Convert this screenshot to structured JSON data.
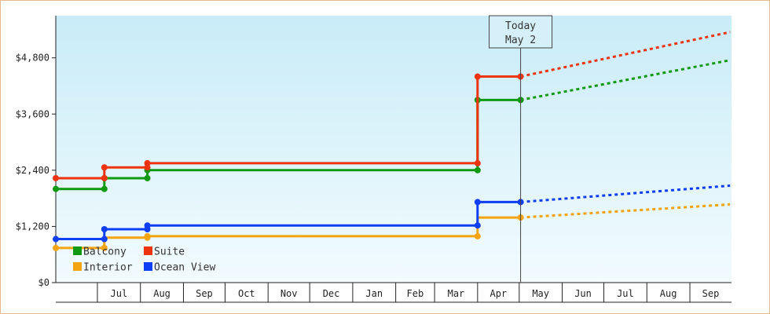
{
  "chart_data": {
    "type": "line",
    "y_ticks": [
      "$0",
      "$1,200",
      "$2,400",
      "$3,600",
      "$4,800"
    ],
    "ylim": [
      0,
      5700
    ],
    "x_months": [
      "Jul",
      "Aug",
      "Sep",
      "Oct",
      "Nov",
      "Dec",
      "Jan",
      "Feb",
      "Mar",
      "Apr",
      "May",
      "Jun",
      "Jul",
      "Aug",
      "Sep"
    ],
    "x_start_date": "2013-06-01",
    "x_end_date": "2014-09-30",
    "today": {
      "label_line1": "Today",
      "label_line2": "May 2",
      "date": "2014-05-02"
    },
    "series": [
      {
        "name": "Balcony",
        "color": "#119911",
        "points": [
          [
            "2013-06-01",
            2000
          ],
          [
            "2013-07-06",
            2000
          ],
          [
            "2013-07-06",
            2230
          ],
          [
            "2013-08-06",
            2230
          ],
          [
            "2013-08-06",
            2400
          ],
          [
            "2014-04-01",
            2400
          ],
          [
            "2014-04-01",
            3900
          ],
          [
            "2014-05-02",
            3900
          ]
        ],
        "markers": [
          [
            "2013-06-01",
            2000
          ],
          [
            "2013-07-06",
            2000
          ],
          [
            "2013-07-06",
            2230
          ],
          [
            "2013-08-06",
            2230
          ],
          [
            "2013-08-06",
            2400
          ],
          [
            "2014-04-01",
            2400
          ],
          [
            "2014-04-01",
            3900
          ],
          [
            "2014-05-02",
            3900
          ]
        ],
        "projection": [
          [
            "2014-05-02",
            3900
          ],
          [
            "2014-09-30",
            4750
          ]
        ]
      },
      {
        "name": "Suite",
        "color": "#ee3311",
        "points": [
          [
            "2013-06-01",
            2230
          ],
          [
            "2013-07-06",
            2230
          ],
          [
            "2013-07-06",
            2460
          ],
          [
            "2013-08-06",
            2460
          ],
          [
            "2013-08-06",
            2550
          ],
          [
            "2014-04-01",
            2550
          ],
          [
            "2014-04-01",
            4400
          ],
          [
            "2014-05-02",
            4400
          ]
        ],
        "markers": [
          [
            "2013-06-01",
            2230
          ],
          [
            "2013-07-06",
            2230
          ],
          [
            "2013-07-06",
            2460
          ],
          [
            "2013-08-06",
            2460
          ],
          [
            "2013-08-06",
            2550
          ],
          [
            "2014-04-01",
            2550
          ],
          [
            "2014-04-01",
            4400
          ],
          [
            "2014-05-02",
            4400
          ]
        ],
        "projection": [
          [
            "2014-05-02",
            4400
          ],
          [
            "2014-09-30",
            5350
          ]
        ]
      },
      {
        "name": "Interior",
        "color": "#f4a411",
        "points": [
          [
            "2013-06-01",
            740
          ],
          [
            "2013-07-06",
            740
          ],
          [
            "2013-07-06",
            960
          ],
          [
            "2013-08-06",
            960
          ],
          [
            "2013-08-06",
            990
          ],
          [
            "2014-04-01",
            990
          ],
          [
            "2014-04-01",
            1390
          ],
          [
            "2014-05-02",
            1390
          ]
        ],
        "markers": [
          [
            "2013-06-01",
            740
          ],
          [
            "2013-07-06",
            740
          ],
          [
            "2013-08-06",
            960
          ],
          [
            "2013-08-06",
            990
          ],
          [
            "2014-04-01",
            990
          ],
          [
            "2014-05-02",
            1390
          ]
        ],
        "projection": [
          [
            "2014-05-02",
            1390
          ],
          [
            "2014-09-30",
            1670
          ]
        ]
      },
      {
        "name": "Ocean View",
        "color": "#0f3ff5",
        "points": [
          [
            "2013-06-01",
            930
          ],
          [
            "2013-07-06",
            930
          ],
          [
            "2013-07-06",
            1140
          ],
          [
            "2013-08-06",
            1140
          ],
          [
            "2013-08-06",
            1220
          ],
          [
            "2014-04-01",
            1220
          ],
          [
            "2014-04-01",
            1720
          ],
          [
            "2014-05-02",
            1720
          ]
        ],
        "markers": [
          [
            "2013-06-01",
            930
          ],
          [
            "2013-07-06",
            930
          ],
          [
            "2013-07-06",
            1140
          ],
          [
            "2013-08-06",
            1140
          ],
          [
            "2013-08-06",
            1220
          ],
          [
            "2014-04-01",
            1220
          ],
          [
            "2014-04-01",
            1720
          ],
          [
            "2014-05-02",
            1720
          ]
        ],
        "projection": [
          [
            "2014-05-02",
            1720
          ],
          [
            "2014-09-30",
            2070
          ]
        ]
      }
    ],
    "legend": {
      "position": "bottom-left",
      "rows": [
        [
          "Balcony",
          "Suite"
        ],
        [
          "Interior",
          "Ocean View"
        ]
      ]
    },
    "background_gradient": [
      "#c9ecf8",
      "#f2fbfe"
    ],
    "grid": false
  }
}
